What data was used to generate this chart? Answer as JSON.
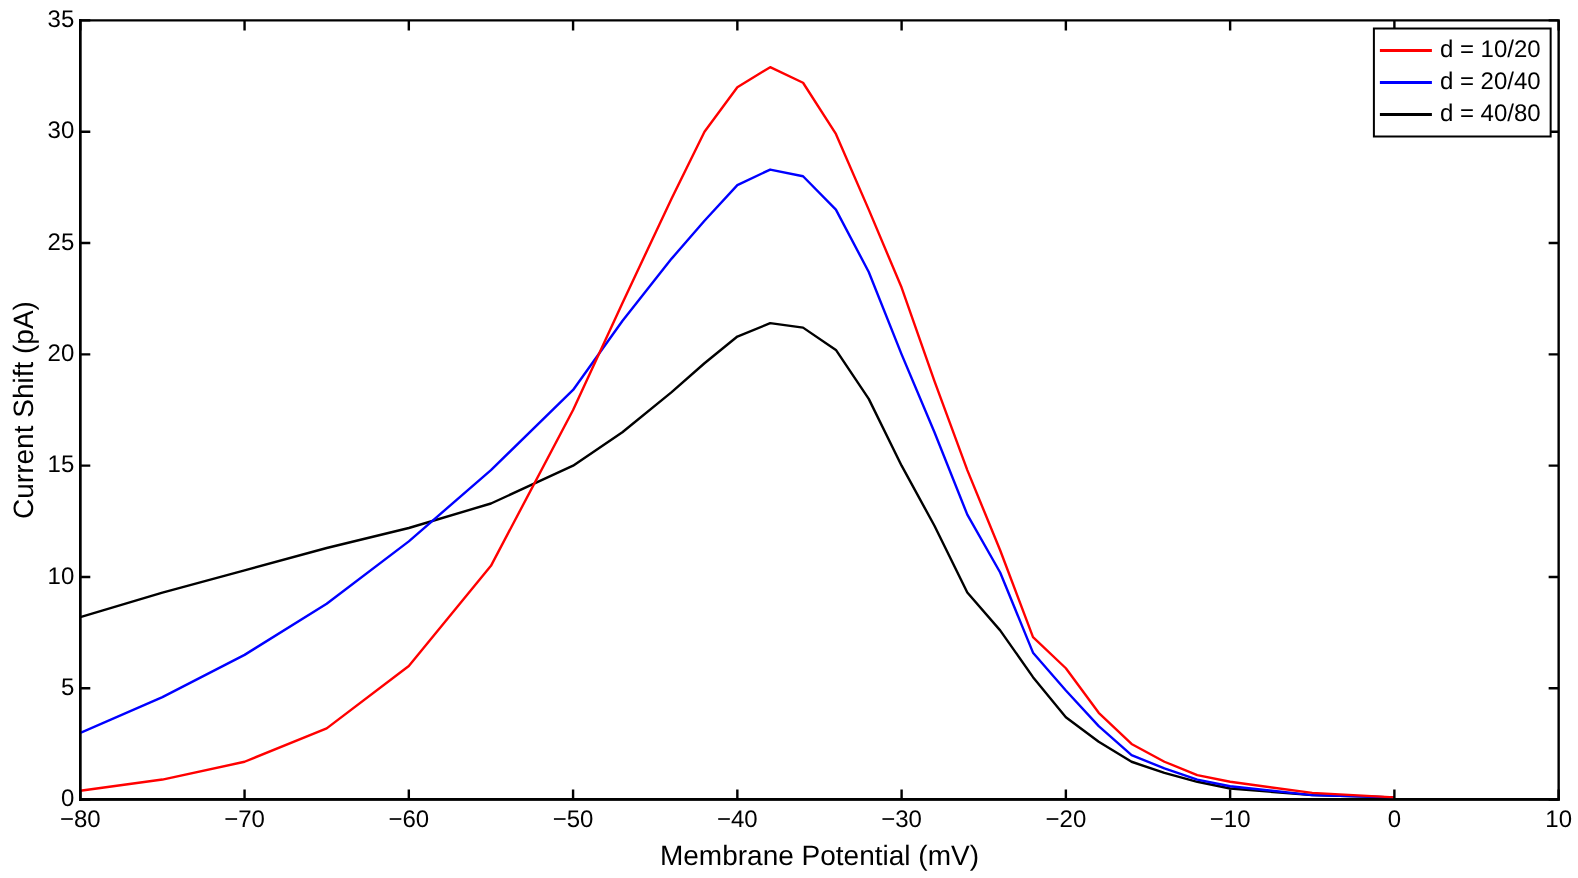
{
  "chart_data": {
    "type": "line",
    "xlabel": "Membrane Potential (mV)",
    "ylabel": "Current Shift (pA)",
    "x": [
      -80,
      -75,
      -70,
      -65,
      -60,
      -55,
      -50,
      -47,
      -44,
      -42,
      -40,
      -38,
      -36,
      -34,
      -32,
      -30,
      -28,
      -26,
      -24,
      -22,
      -20,
      -18,
      -16,
      -14,
      -12,
      -10,
      -5,
      0
    ],
    "series": [
      {
        "name": "d = 10/20",
        "color": "#ff0000",
        "values": [
          0.4,
          0.9,
          1.7,
          3.2,
          6.0,
          10.5,
          17.5,
          22.3,
          27,
          30,
          32.0,
          32.9,
          32.2,
          29.9,
          26.5,
          23.0,
          18.8,
          14.8,
          11.2,
          7.3,
          5.9,
          3.9,
          2.5,
          1.7,
          1.1,
          0.8,
          0.3,
          0.1
        ]
      },
      {
        "name": "d = 20/40",
        "color": "#0000ff",
        "values": [
          3.0,
          4.6,
          6.5,
          8.8,
          11.6,
          14.8,
          18.4,
          21.5,
          24.3,
          26,
          27.6,
          28.3,
          28.0,
          26.5,
          23.7,
          20.0,
          16.5,
          12.8,
          10.2,
          6.6,
          4.9,
          3.3,
          2.0,
          1.4,
          0.9,
          0.6,
          0.2,
          0.1
        ]
      },
      {
        "name": "d = 40/80",
        "color": "#000000",
        "values": [
          8.2,
          9.3,
          10.3,
          11.3,
          12.2,
          13.3,
          15.0,
          16.5,
          18.3,
          19.6,
          20.8,
          21.4,
          21.2,
          20.2,
          18.0,
          15.0,
          12.3,
          9.3,
          7.6,
          5.5,
          3.7,
          2.6,
          1.7,
          1.2,
          0.8,
          0.5,
          0.2,
          0.1
        ]
      }
    ],
    "xlim": [
      -80,
      10
    ],
    "xticks": [
      -80,
      -70,
      -60,
      -50,
      -40,
      -30,
      -20,
      -10,
      0,
      10
    ],
    "ylim": [
      0,
      35
    ],
    "yticks": [
      0,
      5,
      10,
      15,
      20,
      25,
      30,
      35
    ],
    "grid": false,
    "legend": "top right",
    "marker": "none",
    "line_style": "solid"
  }
}
